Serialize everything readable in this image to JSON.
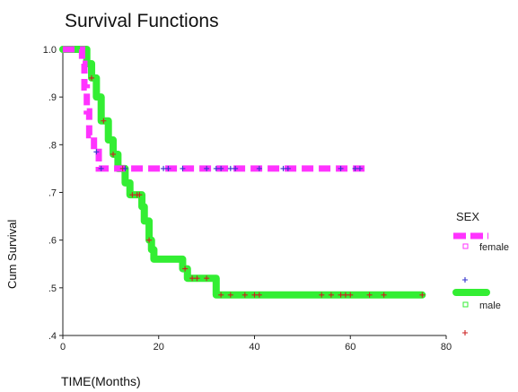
{
  "chart_data": {
    "type": "line",
    "subtype": "kaplan-meier step",
    "title": "Survival Functions",
    "xlabel": "TIME(Months)",
    "ylabel": "Cum Survival",
    "xlim": [
      0,
      80
    ],
    "ylim": [
      0.4,
      1.0
    ],
    "x_ticks": [
      0,
      20,
      40,
      60,
      80
    ],
    "y_ticks": [
      0.4,
      0.5,
      0.6,
      0.7,
      0.8,
      0.9,
      1.0
    ],
    "y_tick_labels": [
      ".4",
      ".5",
      ".6",
      ".7",
      ".8",
      ".9",
      "1.0"
    ],
    "grid": false,
    "legend": {
      "title": "SEX",
      "placement": "right",
      "entries": [
        "female",
        "male"
      ]
    },
    "series": [
      {
        "name": "female",
        "color": "#ff33ff",
        "line_style": "dashed",
        "censor_color": "#3333cc",
        "steps": [
          [
            0,
            1.0
          ],
          [
            4,
            0.97
          ],
          [
            4.5,
            0.92
          ],
          [
            5,
            0.87
          ],
          [
            5.5,
            0.82
          ],
          [
            6.5,
            0.785
          ],
          [
            7.5,
            0.75
          ],
          [
            63,
            0.75
          ]
        ],
        "censor_times": [
          7,
          8,
          13,
          21,
          22,
          25,
          30,
          32,
          33,
          35,
          36,
          41,
          46,
          47,
          58,
          61,
          62
        ]
      },
      {
        "name": "male",
        "color": "#33ee33",
        "line_style": "solid",
        "censor_color": "#cc2222",
        "steps": [
          [
            0,
            1.0
          ],
          [
            5,
            0.97
          ],
          [
            6,
            0.94
          ],
          [
            7,
            0.9
          ],
          [
            8,
            0.85
          ],
          [
            9.5,
            0.81
          ],
          [
            10.5,
            0.78
          ],
          [
            11.5,
            0.75
          ],
          [
            13,
            0.72
          ],
          [
            14,
            0.695
          ],
          [
            16.5,
            0.67
          ],
          [
            17,
            0.64
          ],
          [
            18,
            0.6
          ],
          [
            18.5,
            0.58
          ],
          [
            19,
            0.56
          ],
          [
            25,
            0.54
          ],
          [
            26,
            0.52
          ],
          [
            32,
            0.485
          ],
          [
            75,
            0.485
          ]
        ],
        "censor_times": [
          6,
          8.5,
          10.5,
          12.5,
          14.5,
          15.5,
          16,
          18,
          25.5,
          27,
          28,
          30,
          33,
          35,
          38,
          40,
          41,
          54,
          56,
          58,
          59,
          60,
          64,
          67,
          75
        ]
      }
    ]
  }
}
